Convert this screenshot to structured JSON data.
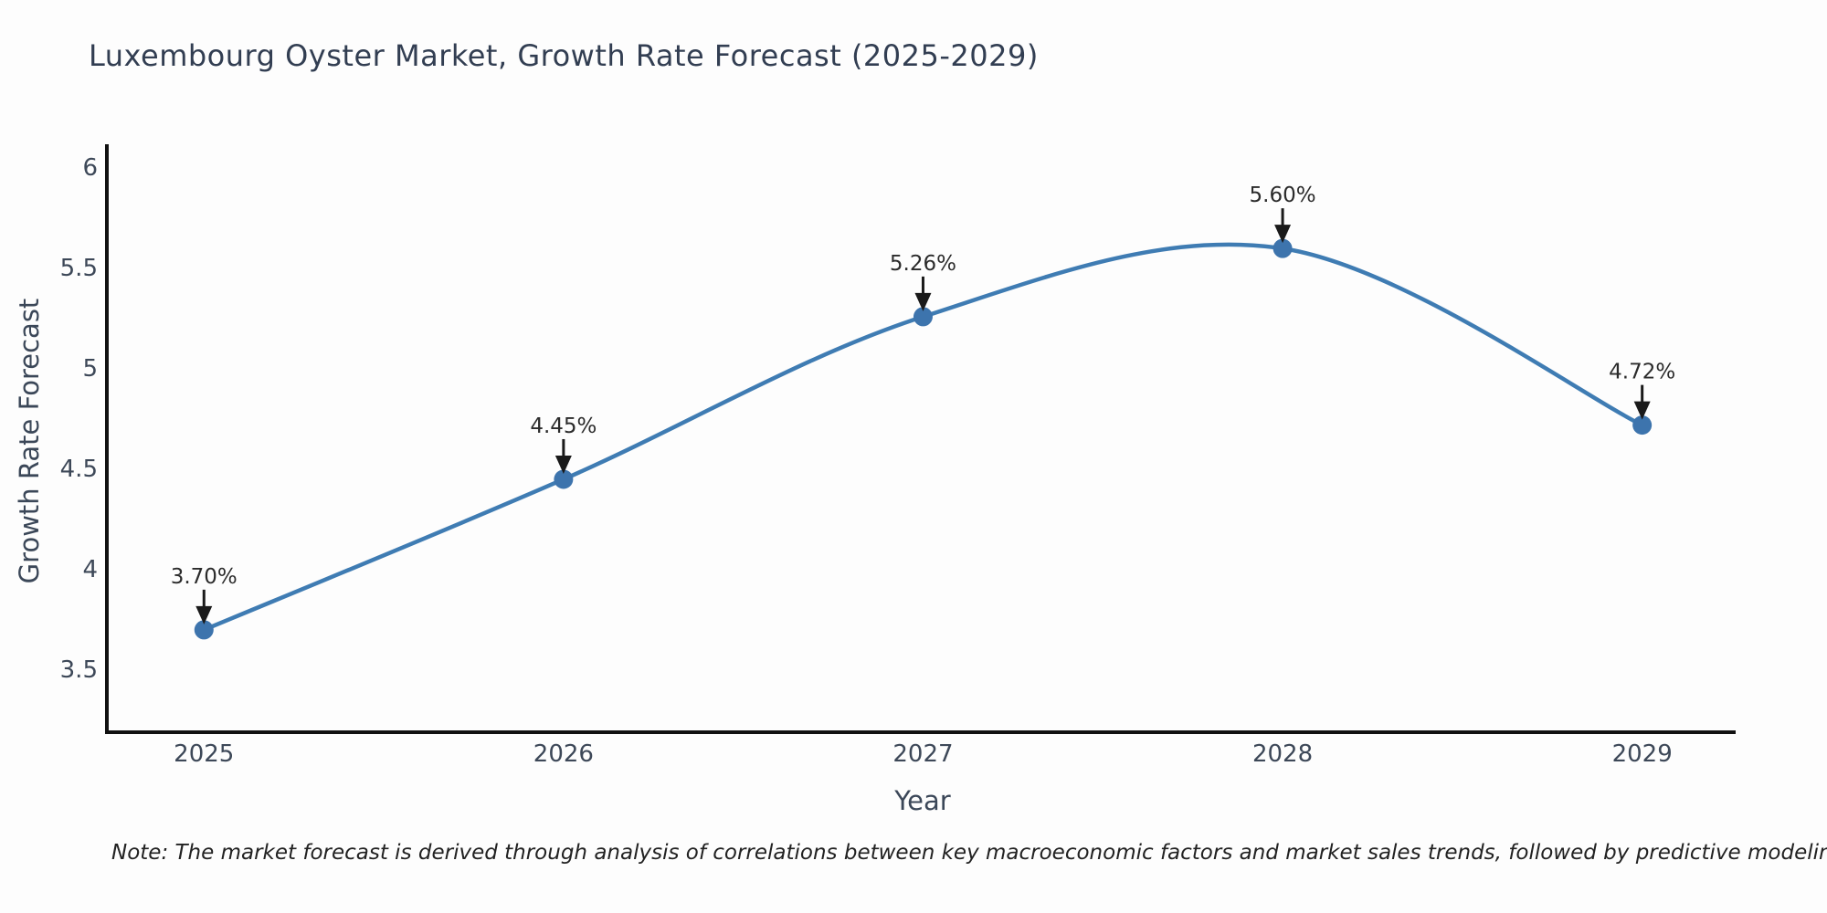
{
  "title": "Luxembourg Oyster Market, Growth Rate Forecast (2025-2029)",
  "note": "Note: The market forecast is derived through analysis of correlations between key macroeconomic factors and market sales trends, followed by predictive modeling to project future sales",
  "colors": {
    "line": "#3f7cb3",
    "marker": "#3d74ad",
    "axis": "#111111",
    "tick_text": "#3d4858",
    "label_text": "#3b4758",
    "annotation_text": "#2b2b2b",
    "arrow": "#1a1a1a",
    "background": "#fdfdfd"
  },
  "chart_data": {
    "type": "line",
    "title": "Luxembourg Oyster Market, Growth Rate Forecast (2025-2029)",
    "xlabel": "Year",
    "ylabel": "Growth Rate Forecast",
    "categories": [
      "2025",
      "2026",
      "2027",
      "2028",
      "2029"
    ],
    "x": [
      2025,
      2026,
      2027,
      2028,
      2029
    ],
    "values": [
      3.7,
      4.45,
      5.26,
      5.6,
      4.72
    ],
    "point_labels": [
      "3.70%",
      "4.45%",
      "5.26%",
      "5.60%",
      "4.72%"
    ],
    "yticks": [
      3.5,
      4,
      4.5,
      5,
      5.5,
      6
    ],
    "ytick_labels": [
      "3.5",
      "4",
      "4.5",
      "5",
      "5.5",
      "6"
    ],
    "xlim": [
      2024.73,
      2029.26
    ],
    "ylim": [
      3.19,
      6.11
    ],
    "grid": false,
    "legend": "none",
    "smoothing": true,
    "marker_style": "circle",
    "annotations_have_arrows": true
  }
}
